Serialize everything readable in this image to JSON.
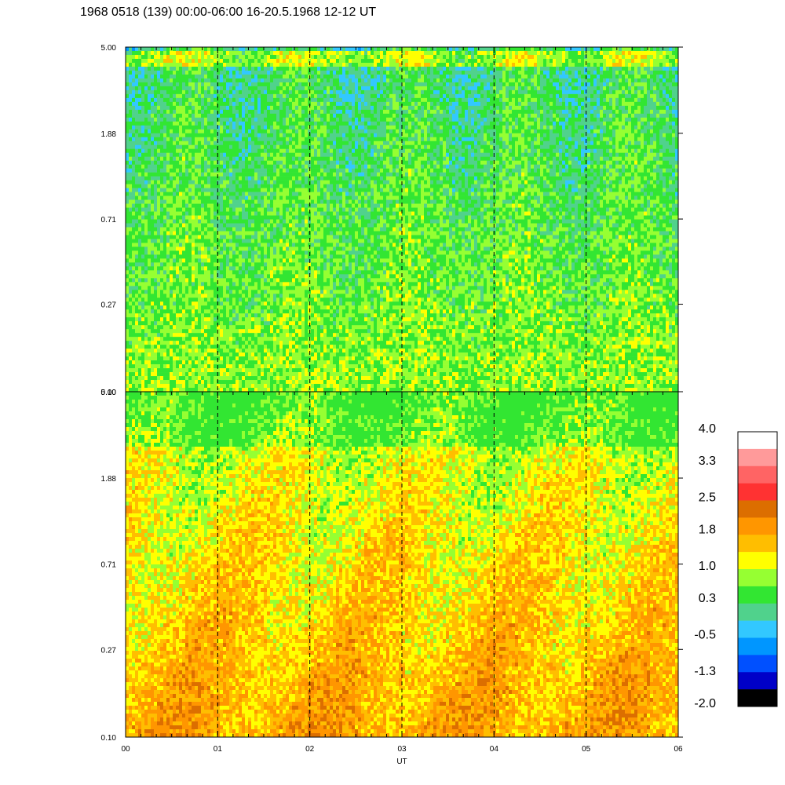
{
  "chart_data": {
    "type": "heatmap",
    "title": "1968 0518 (139) 00:00-06:00 16-20.5.1968  12-12 UT",
    "xlabel": "UT",
    "x_ticks": [
      "00",
      "01",
      "02",
      "03",
      "04",
      "05",
      "06"
    ],
    "xlim": [
      0,
      6
    ],
    "panels": [
      {
        "yscale": "log",
        "ylim": [
          0.1,
          5.0
        ],
        "y_ticks": [
          "5.00",
          "1.88",
          "0.71",
          "0.27",
          "0.10"
        ],
        "dominant_level_range": [
          -1.3,
          1.4
        ],
        "description_values": {
          "typical": 0.6,
          "minimum": -1.3,
          "maximum": 1.4
        }
      },
      {
        "yscale": "log",
        "ylim": [
          0.1,
          5.0
        ],
        "y_ticks": [
          "5.00",
          "1.88",
          "0.71",
          "0.27",
          "0.10"
        ],
        "dominant_level_range": [
          0.3,
          2.5
        ],
        "description_values": {
          "typical": 1.6,
          "minimum": 0.3,
          "maximum": 2.5
        }
      }
    ],
    "colorbar": {
      "range": [
        -2.0,
        4.0
      ],
      "tick_labels": [
        "4.0",
        "3.3",
        "2.5",
        "1.8",
        "1.0",
        "0.3",
        "-0.5",
        "-1.3",
        "-2.0"
      ],
      "colors_top_to_bottom": [
        "#ffffff",
        "#ff9a9a",
        "#ff6464",
        "#ff3232",
        "#dc6e00",
        "#ff9600",
        "#ffbe00",
        "#ffff00",
        "#96ff32",
        "#32e632",
        "#50d28c",
        "#32c8ff",
        "#0096ff",
        "#0050ff",
        "#0000c8",
        "#000000"
      ]
    },
    "grid": "dashed vertical lines at each hour"
  }
}
